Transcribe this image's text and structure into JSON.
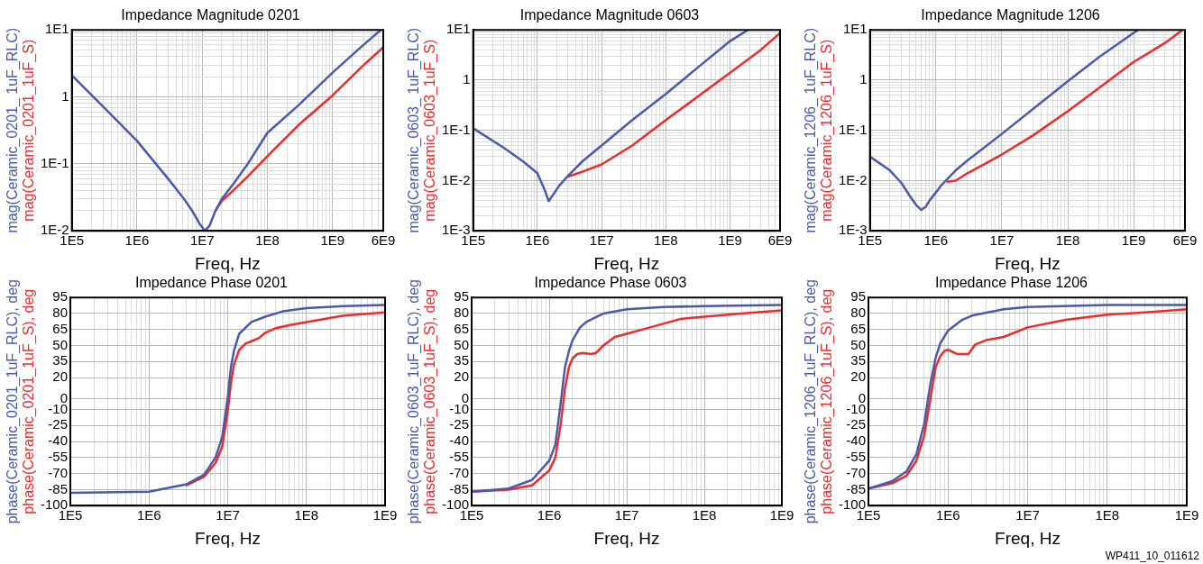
{
  "chart_data": [
    {
      "type": "line",
      "title": "Impedance Magnitude 0201",
      "xlabel": "Freq, Hz",
      "log": "xy",
      "grid": true,
      "xlim": [
        100000.0,
        6000000000.0
      ],
      "xticks": [
        {
          "value": 100000.0,
          "label": "1E5"
        },
        {
          "value": 1000000.0,
          "label": "1E6"
        },
        {
          "value": 10000000.0,
          "label": "1E7"
        },
        {
          "value": 100000000.0,
          "label": "1E8"
        },
        {
          "value": 1000000000.0,
          "label": "1E9"
        },
        {
          "value": 6000000000.0,
          "label": "6E9"
        }
      ],
      "ylim": [
        0.01,
        10
      ],
      "yticks": [
        {
          "value": 0.01,
          "label": "1E-2"
        },
        {
          "value": 0.1,
          "label": "1E-1"
        },
        1,
        {
          "value": 10,
          "label": "1E1"
        }
      ],
      "series": [
        {
          "name": "mag(Ceramic_0201_ 1uF_RLC)",
          "color": "#4a5aa8",
          "x": [
            100000.0,
            300000.0,
            1000000.0,
            3000000.0,
            5000000.0,
            7000000.0,
            9000000.0,
            11000000.0,
            13000000.0,
            16000000.0,
            20000000.0,
            30000000.0,
            50000000.0,
            100000000.0,
            300000000.0,
            1000000000.0,
            3000000000.0,
            5500000000.0
          ],
          "values": [
            2.1,
            0.72,
            0.22,
            0.06,
            0.032,
            0.02,
            0.013,
            0.01,
            0.012,
            0.02,
            0.03,
            0.05,
            0.1,
            0.29,
            0.75,
            2.3,
            6,
            10
          ]
        },
        {
          "name": "mag(Ceramic_0201_1uF_S)",
          "color": "#ee2a2a",
          "x": [
            16000000.0,
            20000000.0,
            30000000.0,
            50000000.0,
            100000000.0,
            300000000.0,
            1000000000.0,
            3000000000.0,
            6000000000.0
          ],
          "values": [
            0.02,
            0.028,
            0.04,
            0.065,
            0.13,
            0.38,
            1.05,
            3,
            5.5
          ]
        }
      ]
    },
    {
      "type": "line",
      "title": "Impedance Magnitude 0603",
      "xlabel": "Freq, Hz",
      "log": "xy",
      "grid": true,
      "xlim": [
        100000.0,
        6000000000.0
      ],
      "xticks": [
        {
          "value": 100000.0,
          "label": "1E5"
        },
        {
          "value": 1000000.0,
          "label": "1E6"
        },
        {
          "value": 10000000.0,
          "label": "1E7"
        },
        {
          "value": 100000000.0,
          "label": "1E8"
        },
        {
          "value": 1000000000.0,
          "label": "1E9"
        },
        {
          "value": 6000000000.0,
          "label": "6E9"
        }
      ],
      "ylim": [
        0.001,
        10
      ],
      "yticks": [
        {
          "value": 0.001,
          "label": "1E-3"
        },
        {
          "value": 0.01,
          "label": "1E-2"
        },
        {
          "value": 0.1,
          "label": "1E-1"
        },
        1,
        {
          "value": 10,
          "label": "1E1"
        }
      ],
      "series": [
        {
          "name": "mag(Ceramic_0603_ 1uF_RLC)",
          "color": "#4a5aa8",
          "x": [
            100000.0,
            300000.0,
            600000.0,
            1000000.0,
            1300000.0,
            1500000.0,
            1800000.0,
            2200000.0,
            3000000.0,
            5000000.0,
            10000000.0,
            30000000.0,
            100000000.0,
            300000000.0,
            1000000000.0,
            1900000000.0
          ],
          "values": [
            0.11,
            0.045,
            0.024,
            0.014,
            0.0065,
            0.0039,
            0.0055,
            0.008,
            0.0125,
            0.024,
            0.05,
            0.16,
            0.53,
            1.7,
            6,
            10
          ]
        },
        {
          "name": "mag(Ceramic_0603_1uF_S)",
          "color": "#ee2a2a",
          "x": [
            3000000.0,
            5000000.0,
            10000000.0,
            30000000.0,
            100000000.0,
            300000000.0,
            1000000000.0,
            3000000000.0,
            6000000000.0
          ],
          "values": [
            0.012,
            0.015,
            0.021,
            0.05,
            0.16,
            0.45,
            1.4,
            4,
            8.7
          ]
        }
      ]
    },
    {
      "type": "line",
      "title": "Impedance Magnitude 1206",
      "xlabel": "Freq, Hz",
      "log": "xy",
      "grid": true,
      "xlim": [
        100000.0,
        6000000000.0
      ],
      "xticks": [
        {
          "value": 100000.0,
          "label": "1E5"
        },
        {
          "value": 1000000.0,
          "label": "1E6"
        },
        {
          "value": 10000000.0,
          "label": "1E7"
        },
        {
          "value": 100000000.0,
          "label": "1E8"
        },
        {
          "value": 1000000000.0,
          "label": "1E9"
        },
        {
          "value": 6000000000.0,
          "label": "6E9"
        }
      ],
      "ylim": [
        0.001,
        10
      ],
      "yticks": [
        {
          "value": 0.001,
          "label": "1E-3"
        },
        {
          "value": 0.01,
          "label": "1E-2"
        },
        {
          "value": 0.1,
          "label": "1E-1"
        },
        1,
        {
          "value": 10,
          "label": "1E1"
        }
      ],
      "series": [
        {
          "name": "mag(Ceramic_1206_ 1uF_RLC)",
          "color": "#4a5aa8",
          "x": [
            100000.0,
            200000.0,
            300000.0,
            400000.0,
            500000.0,
            600000.0,
            700000.0,
            800000.0,
            1000000.0,
            1200000.0,
            2000000.0,
            3000000.0,
            10000000.0,
            30000000.0,
            100000000.0,
            300000000.0,
            1000000000.0,
            1170000000.0
          ],
          "values": [
            0.03,
            0.016,
            0.009,
            0.005,
            0.0033,
            0.0026,
            0.003,
            0.004,
            0.0058,
            0.008,
            0.016,
            0.025,
            0.085,
            0.27,
            0.95,
            2.9,
            8.7,
            10
          ]
        },
        {
          "name": "mag(Ceramic_1206_1uF_S)",
          "color": "#ee2a2a",
          "x": [
            1500000.0,
            2000000.0,
            3000000.0,
            5000000.0,
            10000000.0,
            30000000.0,
            100000000.0,
            300000000.0,
            1000000000.0,
            3000000000.0,
            5500000000.0
          ],
          "values": [
            0.0095,
            0.01,
            0.014,
            0.02,
            0.033,
            0.08,
            0.24,
            0.7,
            2.3,
            5.5,
            10
          ]
        }
      ]
    },
    {
      "type": "line",
      "title": "Impedance Phase 0201",
      "xlabel": "Freq, Hz",
      "log": "x",
      "grid": true,
      "xlim": [
        100000.0,
        1000000000.0
      ],
      "xticks": [
        {
          "value": 100000.0,
          "label": "1E5"
        },
        {
          "value": 1000000.0,
          "label": "1E6"
        },
        {
          "value": 10000000.0,
          "label": "1E7"
        },
        {
          "value": 100000000.0,
          "label": "1E8"
        },
        {
          "value": 1000000000.0,
          "label": "1E9"
        }
      ],
      "ylim": [
        -100,
        95
      ],
      "yticks": [
        95,
        80,
        65,
        50,
        35,
        20,
        0,
        -10,
        -25,
        -40,
        -55,
        -70,
        -85,
        -100
      ],
      "series": [
        {
          "name": "phase(Ceramic_0201_1uF_RLC), deg",
          "color": "#4a5aa8",
          "x": [
            100000.0,
            1000000.0,
            3000000.0,
            5000000.0,
            7000000.0,
            8500000.0,
            10000000.0,
            11000000.0,
            12000000.0,
            14000000.0,
            20000000.0,
            30000000.0,
            50000000.0,
            100000000.0,
            300000000.0,
            1000000000.0
          ],
          "values": [
            -88,
            -87,
            -80,
            -71,
            -55,
            -36,
            1,
            30,
            45,
            61,
            72,
            77,
            82,
            85,
            87,
            88
          ]
        },
        {
          "name": "phase(Ceramic_0201_1uF_S), deg",
          "color": "#ee2a2a",
          "x": [
            3000000.0,
            5000000.0,
            7000000.0,
            8500000.0,
            10000000.0,
            11000000.0,
            12000000.0,
            14000000.0,
            17000000.0,
            20000000.0,
            25000000.0,
            30000000.0,
            40000000.0,
            60000000.0,
            100000000.0,
            300000000.0,
            1000000000.0
          ],
          "values": [
            -81,
            -73,
            -60,
            -45,
            -12,
            15,
            32,
            46,
            52,
            54,
            57,
            62,
            66,
            69,
            72,
            78,
            81
          ]
        }
      ]
    },
    {
      "type": "line",
      "title": "Impedance Phase 0603",
      "xlabel": "Freq, Hz",
      "log": "x",
      "grid": true,
      "xlim": [
        100000.0,
        1000000000.0
      ],
      "xticks": [
        {
          "value": 100000.0,
          "label": "1E5"
        },
        {
          "value": 1000000.0,
          "label": "1E6"
        },
        {
          "value": 10000000.0,
          "label": "1E7"
        },
        {
          "value": 100000000.0,
          "label": "1E8"
        },
        {
          "value": 1000000000.0,
          "label": "1E9"
        }
      ],
      "ylim": [
        -100,
        95
      ],
      "yticks": [
        95,
        80,
        65,
        50,
        35,
        20,
        0,
        -10,
        -25,
        -40,
        -55,
        -70,
        -85,
        -100
      ],
      "series": [
        {
          "name": "phase(Ceramic_0603_1uF_RLC), deg",
          "color": "#4a5aa8",
          "x": [
            100000.0,
            300000.0,
            600000.0,
            1000000.0,
            1200000.0,
            1400000.0,
            1600000.0,
            1800000.0,
            2000000.0,
            2500000.0,
            3000000.0,
            5000000.0,
            10000000.0,
            30000000.0,
            100000000.0,
            1000000000.0
          ],
          "values": [
            -87,
            -84,
            -76,
            -58,
            -43,
            -5,
            30,
            45,
            55,
            67,
            72,
            80,
            84,
            86,
            87,
            88
          ]
        },
        {
          "name": "phase(Ceramic_0603_1uF_S), deg",
          "color": "#ee2a2a",
          "x": [
            100000.0,
            300000.0,
            600000.0,
            1000000.0,
            1200000.0,
            1400000.0,
            1600000.0,
            1800000.0,
            2000000.0,
            2300000.0,
            2700000.0,
            3500000.0,
            4000000.0,
            5000000.0,
            7000000.0,
            10000000.0,
            20000000.0,
            50000000.0,
            100000000.0,
            300000000.0,
            1000000000.0
          ],
          "values": [
            -87,
            -85,
            -81,
            -67,
            -55,
            -25,
            10,
            30,
            38,
            42,
            43,
            42,
            43,
            50,
            58,
            61,
            67,
            75,
            77,
            80,
            83
          ]
        }
      ]
    },
    {
      "type": "line",
      "title": "Impedance Phase 1206",
      "xlabel": "Freq, Hz",
      "log": "x",
      "grid": true,
      "xlim": [
        100000.0,
        1000000000.0
      ],
      "xticks": [
        {
          "value": 100000.0,
          "label": "1E5"
        },
        {
          "value": 1000000.0,
          "label": "1E6"
        },
        {
          "value": 10000000.0,
          "label": "1E7"
        },
        {
          "value": 100000000.0,
          "label": "1E8"
        },
        {
          "value": 1000000000.0,
          "label": "1E9"
        }
      ],
      "ylim": [
        -100,
        95
      ],
      "yticks": [
        95,
        80,
        65,
        50,
        35,
        20,
        0,
        -10,
        -25,
        -40,
        -55,
        -70,
        -85,
        -100
      ],
      "annotations": [
        "WP411_10_011612"
      ],
      "series": [
        {
          "name": "phase(Ceramic_1206_1uF_RLC), deg",
          "color": "#4a5aa8",
          "x": [
            100000.0,
            200000.0,
            300000.0,
            400000.0,
            500000.0,
            600000.0,
            700000.0,
            800000.0,
            1000000.0,
            1500000.0,
            2000000.0,
            5000000.0,
            10000000.0,
            100000000.0,
            1000000000.0
          ],
          "values": [
            -84,
            -77,
            -68,
            -52,
            -24,
            14,
            39,
            52,
            64,
            74,
            78,
            84,
            86,
            88,
            88
          ]
        },
        {
          "name": "phase(Ceramic_1206_1uF_S), deg",
          "color": "#ee2a2a",
          "x": [
            100000.0,
            200000.0,
            300000.0,
            400000.0,
            500000.0,
            600000.0,
            700000.0,
            800000.0,
            900000.0,
            1000000.0,
            1300000.0,
            1800000.0,
            2200000.0,
            3000000.0,
            5000000.0,
            10000000.0,
            30000000.0,
            100000000.0,
            300000000.0,
            1000000000.0
          ],
          "values": [
            -84,
            -79,
            -72,
            -58,
            -35,
            0,
            30,
            40,
            45,
            46,
            42,
            42,
            51,
            55,
            58,
            67,
            74,
            79,
            81,
            84
          ]
        }
      ]
    }
  ]
}
